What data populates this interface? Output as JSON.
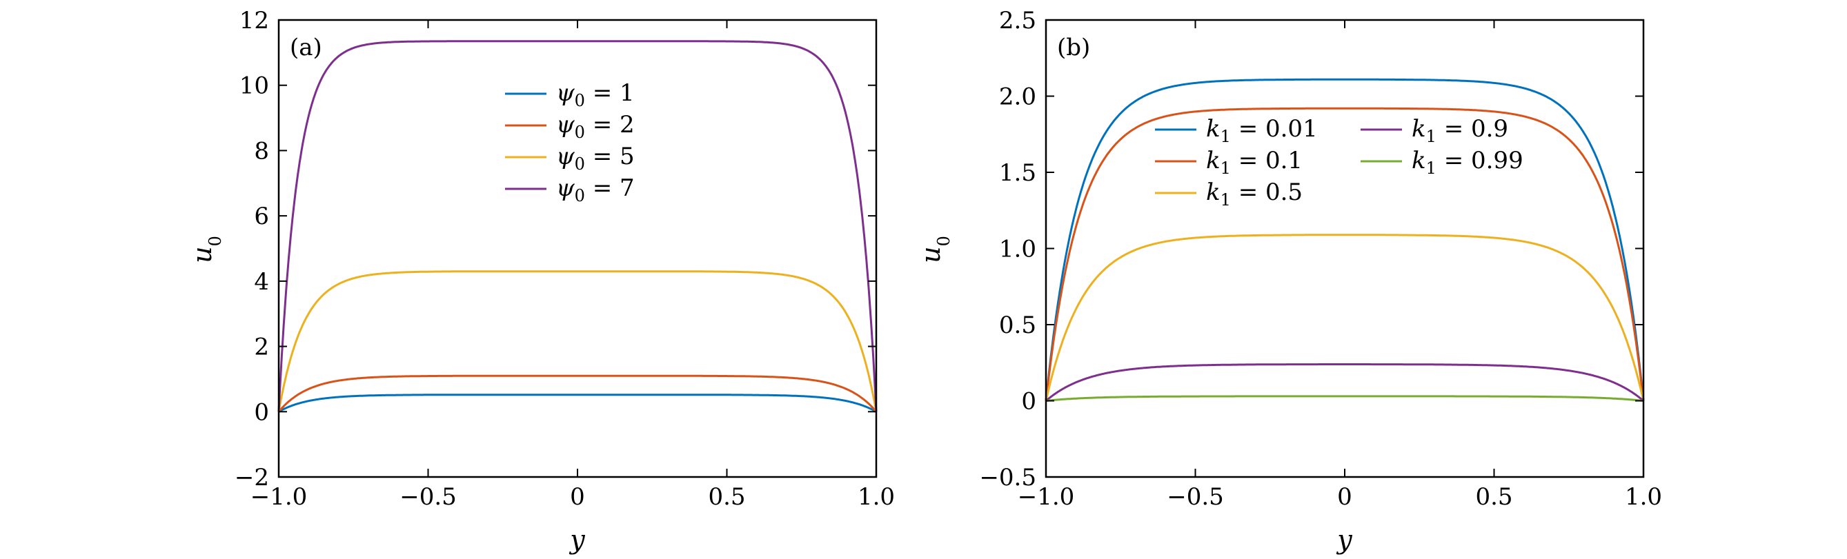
{
  "colors": {
    "blue": "#0072BD",
    "red": "#D95319",
    "yellow": "#EDB120",
    "purple": "#7E2F8E",
    "green": "#77AC30"
  },
  "chart_data": [
    {
      "type": "line",
      "panel_label": "(a)",
      "xlabel": "y",
      "ylabel": "u0",
      "xlim": [
        -1.0,
        1.0
      ],
      "ylim": [
        -2,
        12
      ],
      "xticks": [
        -1.0,
        -0.5,
        0,
        0.5,
        1.0
      ],
      "xtick_labels": [
        "−1.0",
        "−0.5",
        "0",
        "0.5",
        "1.0"
      ],
      "yticks": [
        -2,
        0,
        2,
        4,
        6,
        8,
        10,
        12
      ],
      "ytick_labels": [
        "−2",
        "0",
        "2",
        "4",
        "6",
        "8",
        "10",
        "12"
      ],
      "grid": false,
      "legend_position": "top-center",
      "series": [
        {
          "name": "ψ0 = 1",
          "color": "blue",
          "plateau": 0.52,
          "shape": 10
        },
        {
          "name": "ψ0 = 2",
          "color": "red",
          "plateau": 1.1,
          "shape": 10
        },
        {
          "name": "ψ0 = 5",
          "color": "yellow",
          "plateau": 4.3,
          "shape": 12
        },
        {
          "name": "ψ0 = 7",
          "color": "purple",
          "plateau": 11.35,
          "shape": 16
        }
      ],
      "legend": [
        {
          "sym": "ψ",
          "sub": "0",
          "rest": " = 1",
          "color": "blue"
        },
        {
          "sym": "ψ",
          "sub": "0",
          "rest": " = 2",
          "color": "red"
        },
        {
          "sym": "ψ",
          "sub": "0",
          "rest": " = 5",
          "color": "yellow"
        },
        {
          "sym": "ψ",
          "sub": "0",
          "rest": " = 7",
          "color": "purple"
        }
      ]
    },
    {
      "type": "line",
      "panel_label": "(b)",
      "xlabel": "y",
      "ylabel": "u0",
      "xlim": [
        -1.0,
        1.0
      ],
      "ylim": [
        -0.5,
        2.5
      ],
      "xticks": [
        -1.0,
        -0.5,
        0,
        0.5,
        1.0
      ],
      "xtick_labels": [
        "−1.0",
        "−0.5",
        "0",
        "0.5",
        "1.0"
      ],
      "yticks": [
        -0.5,
        0,
        0.5,
        1.0,
        1.5,
        2.0,
        2.5
      ],
      "ytick_labels": [
        "−0.5",
        "0",
        "0.5",
        "1.0",
        "1.5",
        "2.0",
        "2.5"
      ],
      "grid": false,
      "legend_position": "upper-center, two columns",
      "series": [
        {
          "name": "k1 = 0.01",
          "color": "blue",
          "plateau": 2.11,
          "shape": 9
        },
        {
          "name": "k1 = 0.1",
          "color": "red",
          "plateau": 1.92,
          "shape": 9
        },
        {
          "name": "k1 = 0.5",
          "color": "yellow",
          "plateau": 1.09,
          "shape": 8
        },
        {
          "name": "k1 = 0.9",
          "color": "purple",
          "plateau": 0.24,
          "shape": 7
        },
        {
          "name": "k1 = 0.99",
          "color": "green",
          "plateau": 0.03,
          "shape": 7
        }
      ],
      "legend": [
        {
          "sym": "k",
          "sub": "1",
          "rest": " = 0.01",
          "color": "blue"
        },
        {
          "sym": "k",
          "sub": "1",
          "rest": " = 0.1",
          "color": "red"
        },
        {
          "sym": "k",
          "sub": "1",
          "rest": " = 0.5",
          "color": "yellow"
        },
        {
          "sym": "k",
          "sub": "1",
          "rest": " = 0.9",
          "color": "purple"
        },
        {
          "sym": "k",
          "sub": "1",
          "rest": " = 0.99",
          "color": "green"
        }
      ]
    }
  ]
}
